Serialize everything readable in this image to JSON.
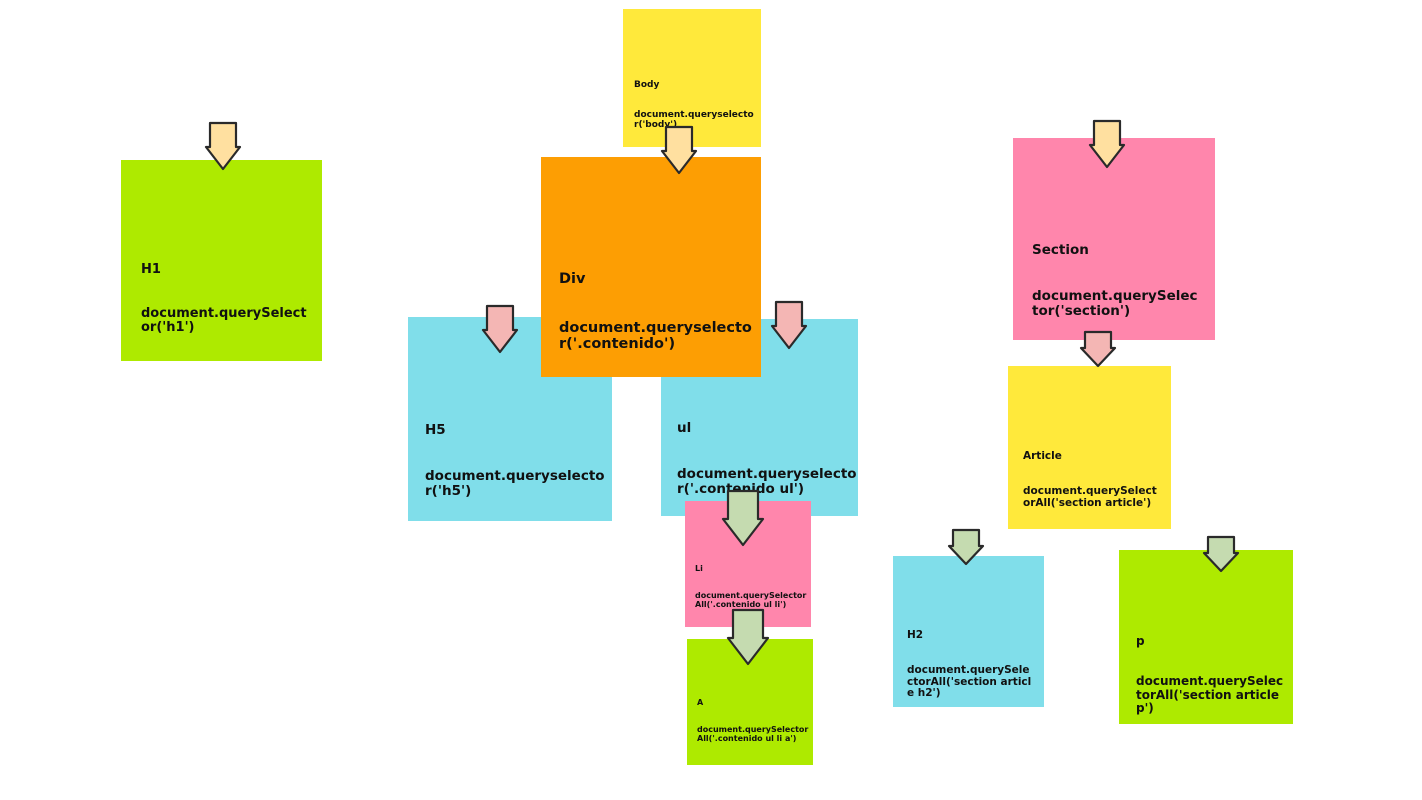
{
  "colors": {
    "yellow": "#ffe93b",
    "orange": "#fd9e03",
    "green": "#aeea00",
    "pink": "#ff86ac",
    "cyan": "#80deea",
    "arrow_yellow": "#ffe0a0",
    "arrow_pink": "#f4b6b4",
    "arrow_green": "#c5dbb0",
    "arrow_stroke": "#2a2a2a"
  },
  "notes": {
    "body": {
      "title": "Body",
      "selector": "document.queryselector('body')"
    },
    "h1": {
      "title": "H1",
      "selector": "document.querySelector('h1')"
    },
    "div": {
      "title": "Div",
      "selector": "document.queryselector('.contenido')"
    },
    "h5": {
      "title": "H5",
      "selector": "document.queryselector('h5')"
    },
    "ul": {
      "title": "ul",
      "selector": "document.queryselector('.contenido ul')"
    },
    "li": {
      "title": "Li",
      "selector": "document.querySelectorAll('.contenido ul li')"
    },
    "a": {
      "title": "A",
      "selector": "document.querySelectorAll('.contenido ul li a')"
    },
    "section": {
      "title": "Section",
      "selector": "document.querySelector('section')"
    },
    "article": {
      "title": "Article",
      "selector": "document.querySelectorAll('section article')"
    },
    "h2": {
      "title": "H2",
      "selector": "document.querySelectorAll('section article h2')"
    },
    "p": {
      "title": "p",
      "selector": "document.querySelectorAll('section article p')"
    }
  }
}
